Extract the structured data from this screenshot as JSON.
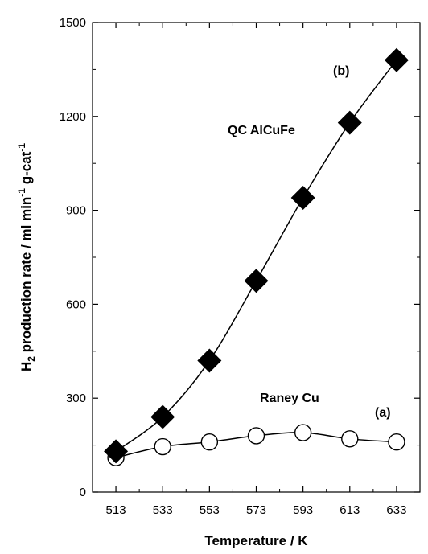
{
  "chart_data": {
    "type": "line",
    "xlabel": "Temperature / K",
    "ylabel_parts": [
      "H",
      "2",
      " production rate / ml min",
      "-1",
      " g-cat",
      "-1"
    ],
    "xlim": [
      503,
      643
    ],
    "ylim": [
      0,
      1500
    ],
    "x_ticks": [
      513,
      533,
      553,
      573,
      593,
      613,
      633
    ],
    "y_ticks": [
      0,
      300,
      600,
      900,
      1200,
      1500
    ],
    "grid": false,
    "series": [
      {
        "name": "QC AlCuFe",
        "tag": "(b)",
        "marker": "filled-diamond",
        "x": [
          513,
          533,
          553,
          573,
          593,
          613,
          633
        ],
        "y": [
          130,
          240,
          420,
          675,
          940,
          1180,
          1380
        ]
      },
      {
        "name": "Raney Cu",
        "tag": "(a)",
        "marker": "open-circle",
        "x": [
          513,
          533,
          553,
          573,
          593,
          613,
          633
        ],
        "y": [
          110,
          145,
          160,
          180,
          190,
          170,
          160
        ]
      }
    ]
  }
}
